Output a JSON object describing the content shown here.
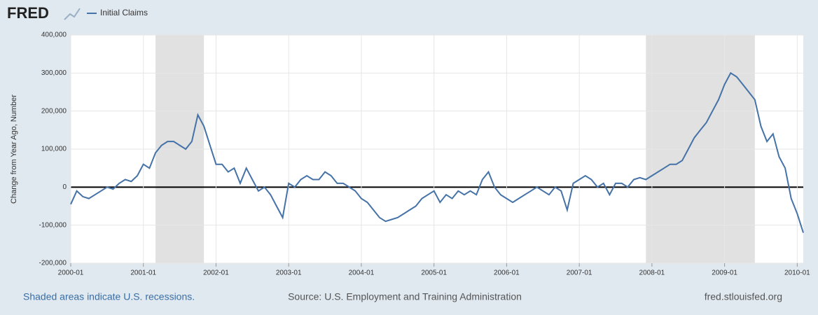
{
  "brand": "FRED",
  "footer": {
    "note": "Shaded areas indicate U.S. recessions.",
    "source": "Source: U.S. Employment and Training Administration",
    "site": "fred.stlouisfed.org"
  },
  "chart_data": {
    "type": "line",
    "ylabel": "Change from Year Ago, Number",
    "x": [
      "2000-01",
      "2000-02",
      "2000-03",
      "2000-04",
      "2000-05",
      "2000-06",
      "2000-07",
      "2000-08",
      "2000-09",
      "2000-10",
      "2000-11",
      "2000-12",
      "2001-01",
      "2001-02",
      "2001-03",
      "2001-04",
      "2001-05",
      "2001-06",
      "2001-07",
      "2001-08",
      "2001-09",
      "2001-10",
      "2001-11",
      "2001-12",
      "2002-01",
      "2002-02",
      "2002-03",
      "2002-04",
      "2002-05",
      "2002-06",
      "2002-07",
      "2002-08",
      "2002-09",
      "2002-10",
      "2002-11",
      "2002-12",
      "2003-01",
      "2003-02",
      "2003-03",
      "2003-04",
      "2003-05",
      "2003-06",
      "2003-07",
      "2003-08",
      "2003-09",
      "2003-10",
      "2003-11",
      "2003-12",
      "2004-01",
      "2004-02",
      "2004-03",
      "2004-04",
      "2004-05",
      "2004-06",
      "2004-07",
      "2004-08",
      "2004-09",
      "2004-10",
      "2004-11",
      "2004-12",
      "2005-01",
      "2005-02",
      "2005-03",
      "2005-04",
      "2005-05",
      "2005-06",
      "2005-07",
      "2005-08",
      "2005-09",
      "2005-10",
      "2005-11",
      "2005-12",
      "2006-01",
      "2006-02",
      "2006-03",
      "2006-04",
      "2006-05",
      "2006-06",
      "2006-07",
      "2006-08",
      "2006-09",
      "2006-10",
      "2006-11",
      "2006-12",
      "2007-01",
      "2007-02",
      "2007-03",
      "2007-04",
      "2007-05",
      "2007-06",
      "2007-07",
      "2007-08",
      "2007-09",
      "2007-10",
      "2007-11",
      "2007-12",
      "2008-01",
      "2008-02",
      "2008-03",
      "2008-04",
      "2008-05",
      "2008-06",
      "2008-07",
      "2008-08",
      "2008-09",
      "2008-10",
      "2008-11",
      "2008-12",
      "2009-01",
      "2009-02",
      "2009-03",
      "2009-04",
      "2009-05",
      "2009-06",
      "2009-07",
      "2009-08",
      "2009-09",
      "2009-10",
      "2009-11",
      "2009-12",
      "2010-01",
      "2010-02"
    ],
    "series": [
      {
        "name": "Initial Claims",
        "color": "#4572a7",
        "values": [
          -45000,
          -10000,
          -25000,
          -30000,
          -20000,
          -10000,
          0,
          -5000,
          10000,
          20000,
          15000,
          30000,
          60000,
          50000,
          90000,
          110000,
          120000,
          120000,
          110000,
          100000,
          120000,
          190000,
          160000,
          110000,
          60000,
          60000,
          40000,
          50000,
          10000,
          50000,
          20000,
          -10000,
          0,
          -20000,
          -50000,
          -80000,
          10000,
          0,
          20000,
          30000,
          20000,
          20000,
          40000,
          30000,
          10000,
          10000,
          0,
          -10000,
          -30000,
          -40000,
          -60000,
          -80000,
          -90000,
          -85000,
          -80000,
          -70000,
          -60000,
          -50000,
          -30000,
          -20000,
          -10000,
          -40000,
          -20000,
          -30000,
          -10000,
          -20000,
          -10000,
          -20000,
          20000,
          40000,
          0,
          -20000,
          -30000,
          -40000,
          -30000,
          -20000,
          -10000,
          0,
          -10000,
          -20000,
          0,
          -10000,
          -60000,
          10000,
          20000,
          30000,
          20000,
          0,
          10000,
          -20000,
          10000,
          10000,
          0,
          20000,
          25000,
          20000,
          30000,
          40000,
          50000,
          60000,
          60000,
          70000,
          100000,
          130000,
          150000,
          170000,
          200000,
          230000,
          270000,
          300000,
          290000,
          270000,
          250000,
          230000,
          160000,
          120000,
          140000,
          80000,
          50000,
          -30000,
          -70000,
          -120000
        ]
      }
    ],
    "xlim": [
      "2000-01",
      "2010-02"
    ],
    "xticks": [
      "2000-01",
      "2001-01",
      "2002-01",
      "2003-01",
      "2004-01",
      "2005-01",
      "2006-01",
      "2007-01",
      "2008-01",
      "2009-01",
      "2010-01"
    ],
    "ylim": [
      -200000,
      400000
    ],
    "yticks": [
      {
        "value": -200000,
        "label": "-200,000"
      },
      {
        "value": -100000,
        "label": "-100,000"
      },
      {
        "value": 0,
        "label": "0"
      },
      {
        "value": 100000,
        "label": "100,000"
      },
      {
        "value": 200000,
        "label": "200,000"
      },
      {
        "value": 300000,
        "label": "300,000"
      },
      {
        "value": 400000,
        "label": "400,000"
      }
    ],
    "recessions": [
      {
        "start": "2001-03",
        "end": "2001-11"
      },
      {
        "start": "2007-12",
        "end": "2009-06"
      }
    ],
    "grid": true
  }
}
